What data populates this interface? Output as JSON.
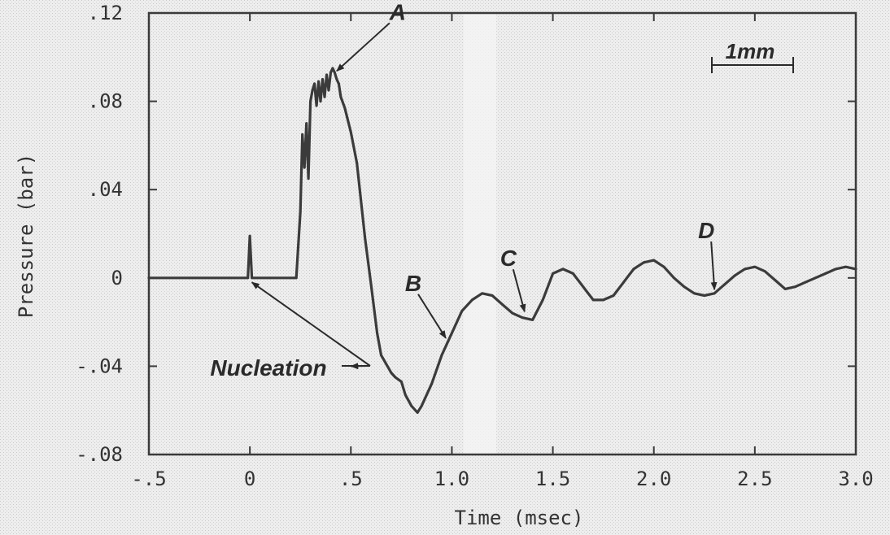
{
  "chart_data": {
    "type": "line",
    "xlabel": "Time (msec)",
    "ylabel": "Pressure (bar)",
    "xlim": [
      -0.5,
      3.0
    ],
    "ylim": [
      -0.08,
      0.12
    ],
    "grid": false,
    "x_ticks": [
      -0.5,
      0,
      0.5,
      1.0,
      1.5,
      2.0,
      2.5,
      3.0
    ],
    "x_tick_labels": [
      "-.5",
      "0",
      ".5",
      "1.0",
      "1.5",
      "2.0",
      "2.5",
      "3.0"
    ],
    "y_ticks": [
      -0.08,
      -0.04,
      0,
      0.04,
      0.08,
      0.12
    ],
    "y_tick_labels": [
      "-.08",
      "-.04",
      "0",
      ".04",
      ".08",
      ".12"
    ],
    "series": [
      {
        "x": [
          -0.5,
          -0.3,
          -0.1,
          -0.01,
          0.0,
          0.01,
          0.1,
          0.2,
          0.22,
          0.23,
          0.25,
          0.26,
          0.27,
          0.28,
          0.29,
          0.3,
          0.31,
          0.32,
          0.33,
          0.34,
          0.35,
          0.36,
          0.37,
          0.38,
          0.39,
          0.4,
          0.41,
          0.42,
          0.43,
          0.44,
          0.45,
          0.47,
          0.5,
          0.53,
          0.55,
          0.57,
          0.6,
          0.63,
          0.65,
          0.7,
          0.72,
          0.75,
          0.77,
          0.8,
          0.83,
          0.85,
          0.9,
          0.95,
          1.0,
          1.05,
          1.1,
          1.15,
          1.2,
          1.25,
          1.3,
          1.35,
          1.4,
          1.45,
          1.5,
          1.55,
          1.6,
          1.65,
          1.7,
          1.75,
          1.8,
          1.85,
          1.9,
          1.95,
          2.0,
          2.05,
          2.1,
          2.15,
          2.2,
          2.25,
          2.3,
          2.35,
          2.4,
          2.45,
          2.5,
          2.55,
          2.6,
          2.65,
          2.7,
          2.75,
          2.8,
          2.85,
          2.9,
          2.95,
          3.0
        ],
        "y": [
          0.0,
          0.0,
          0.0,
          0.0,
          0.019,
          0.0,
          0.0,
          0.0,
          0.0,
          0.0,
          0.03,
          0.065,
          0.05,
          0.07,
          0.045,
          0.08,
          0.085,
          0.088,
          0.078,
          0.089,
          0.08,
          0.09,
          0.082,
          0.092,
          0.085,
          0.093,
          0.095,
          0.093,
          0.09,
          0.088,
          0.082,
          0.077,
          0.066,
          0.052,
          0.035,
          0.018,
          -0.003,
          -0.025,
          -0.035,
          -0.043,
          -0.045,
          -0.047,
          -0.053,
          -0.058,
          -0.061,
          -0.058,
          -0.048,
          -0.035,
          -0.025,
          -0.015,
          -0.01,
          -0.007,
          -0.008,
          -0.012,
          -0.016,
          -0.018,
          -0.019,
          -0.01,
          0.002,
          0.004,
          0.002,
          -0.004,
          -0.01,
          -0.01,
          -0.008,
          -0.002,
          0.004,
          0.007,
          0.008,
          0.005,
          0.0,
          -0.004,
          -0.007,
          -0.008,
          -0.007,
          -0.003,
          0.001,
          0.004,
          0.005,
          0.003,
          -0.001,
          -0.005,
          -0.004,
          -0.002,
          0.0,
          0.002,
          0.004,
          0.005,
          0.004
        ]
      }
    ],
    "annotations": [
      {
        "text": "A",
        "x": 0.43,
        "y": 0.093
      },
      {
        "text": "B",
        "x": 0.97,
        "y": -0.028
      },
      {
        "text": "C",
        "x": 1.36,
        "y": -0.016
      },
      {
        "text": "D",
        "x": 2.3,
        "y": -0.006
      },
      {
        "text": "Nucleation",
        "targets": [
          {
            "x": 0.01,
            "y": -0.002
          },
          {
            "x": 0.5,
            "y": -0.04
          }
        ]
      }
    ],
    "scale_bar_label": "1mm"
  }
}
